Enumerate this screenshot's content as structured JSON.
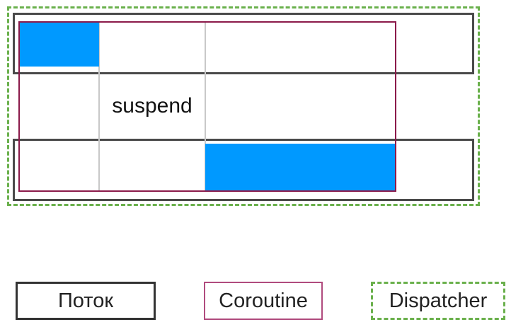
{
  "diagram": {
    "suspend_label": "suspend",
    "colors": {
      "running": "#0099ff",
      "thread_border": "#4a4a4a",
      "coroutine_border": "#8b1a4a",
      "dispatcher_border": "#6ab04c",
      "gridline": "#c8c8c8"
    }
  },
  "legend": {
    "thread_label": "Поток",
    "coroutine_label": "Coroutine",
    "dispatcher_label": "Dispatcher"
  }
}
